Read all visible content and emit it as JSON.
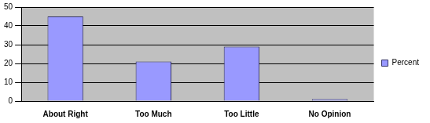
{
  "chart_data": {
    "type": "bar",
    "categories": [
      "About Right",
      "Too Much",
      "Too Little",
      "No Opinion"
    ],
    "series": [
      {
        "name": "Percent",
        "color": "#9999ff",
        "values": [
          45,
          21,
          29,
          1
        ]
      }
    ],
    "ylim": [
      0,
      50
    ],
    "yticks": [
      0,
      10,
      20,
      30,
      40,
      50
    ],
    "grid": true,
    "legend": "right"
  }
}
